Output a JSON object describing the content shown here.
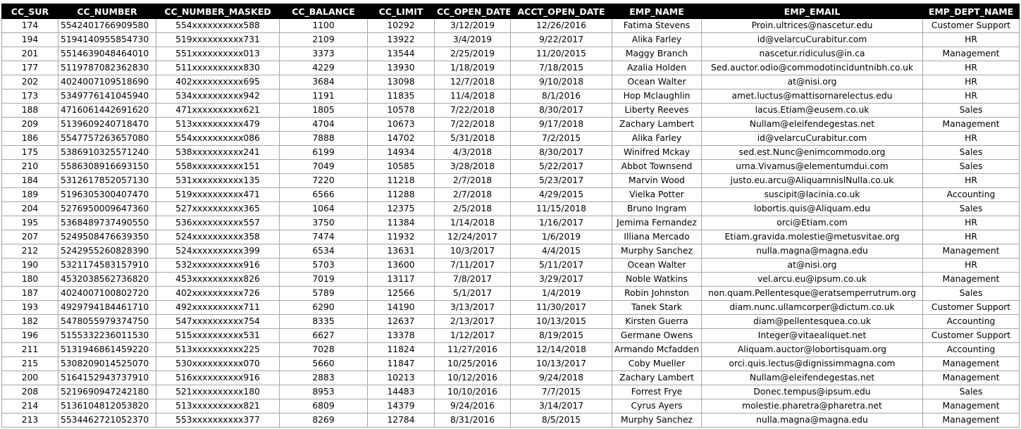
{
  "columns": [
    "CC_SUR",
    "CC_NUMBER",
    "CC_NUMBER_MASKED",
    "CC_BALANCE",
    "CC_LIMIT",
    "CC_OPEN_DATE",
    "ACCT_OPEN_DATE",
    "EMP_NAME",
    "EMP_EMAIL",
    "EMP_DEPT_NAME"
  ],
  "rows": [
    [
      "174",
      "5542401766909580",
      "554xxxxxxxxxx588",
      "1100",
      "10292",
      "3/12/2019",
      "12/26/2016",
      "Fatima Stevens",
      "Proin.ultrices@nascetur.edu",
      "Customer Support"
    ],
    [
      "194",
      "5194140955854730",
      "519xxxxxxxxxx731",
      "2109",
      "13922",
      "3/4/2019",
      "9/22/2017",
      "Alika Farley",
      "id@velarcuCurabitur.com",
      "HR"
    ],
    [
      "201",
      "5514639048464010",
      "551xxxxxxxxxx013",
      "3373",
      "13544",
      "2/25/2019",
      "11/20/2015",
      "Maggy Branch",
      "nascetur.ridiculus@in.ca",
      "Management"
    ],
    [
      "177",
      "5119787082362830",
      "511xxxxxxxxxx830",
      "4229",
      "13930",
      "1/18/2019",
      "7/18/2015",
      "Azalia Holden",
      "Sed.auctor.odio@commodotinciduntnibh.co.uk",
      "HR"
    ],
    [
      "202",
      "4024007109518690",
      "402xxxxxxxxxx695",
      "3684",
      "13098",
      "12/7/2018",
      "9/10/2018",
      "Ocean Walter",
      "at@nisi.org",
      "HR"
    ],
    [
      "173",
      "5349776141045940",
      "534xxxxxxxxxx942",
      "1191",
      "11835",
      "11/4/2018",
      "8/1/2016",
      "Hop Mclaughlin",
      "amet.luctus@mattisornarelectus.edu",
      "HR"
    ],
    [
      "188",
      "4716061442691620",
      "471xxxxxxxxxx621",
      "1805",
      "10578",
      "7/22/2018",
      "8/30/2017",
      "Liberty Reeves",
      "lacus.Etiam@eusem.co.uk",
      "Sales"
    ],
    [
      "209",
      "5139609240718470",
      "513xxxxxxxxxx479",
      "4704",
      "10673",
      "7/22/2018",
      "9/17/2018",
      "Zachary Lambert",
      "Nullam@eleifendegestas.net",
      "Management"
    ],
    [
      "186",
      "5547757263657080",
      "554xxxxxxxxxx086",
      "7888",
      "14702",
      "5/31/2018",
      "7/2/2015",
      "Alika Farley",
      "id@velarcuCurabitur.com",
      "HR"
    ],
    [
      "175",
      "5386910325571240",
      "538xxxxxxxxxx241",
      "6199",
      "14934",
      "4/3/2018",
      "8/30/2017",
      "Winifred Mckay",
      "sed.est.Nunc@enimcommodo.org",
      "Sales"
    ],
    [
      "210",
      "5586308916693150",
      "558xxxxxxxxxx151",
      "7049",
      "10585",
      "3/28/2018",
      "5/22/2017",
      "Abbot Townsend",
      "urna.Vivamus@elementumdui.com",
      "Sales"
    ],
    [
      "184",
      "5312617852057130",
      "531xxxxxxxxxx135",
      "7220",
      "11218",
      "2/7/2018",
      "5/23/2017",
      "Marvin Wood",
      "justo.eu.arcu@AliquamnislNulla.co.uk",
      "HR"
    ],
    [
      "189",
      "5196305300407470",
      "519xxxxxxxxxx471",
      "6566",
      "11288",
      "2/7/2018",
      "4/29/2015",
      "Vielka Potter",
      "suscipit@lacinia.co.uk",
      "Accounting"
    ],
    [
      "204",
      "5276950009647360",
      "527xxxxxxxxxx365",
      "1064",
      "12375",
      "2/5/2018",
      "11/15/2018",
      "Bruno Ingram",
      "lobortis.quis@Aliquam.edu",
      "Sales"
    ],
    [
      "195",
      "5368489737490550",
      "536xxxxxxxxxx557",
      "3750",
      "11384",
      "1/14/2018",
      "1/16/2017",
      "Jemima Fernandez",
      "orci@Etiam.com",
      "HR"
    ],
    [
      "207",
      "5249508476639350",
      "524xxxxxxxxxx358",
      "7474",
      "11932",
      "12/24/2017",
      "1/6/2019",
      "Illiana Mercado",
      "Etiam.gravida.molestie@metusvitae.org",
      "HR"
    ],
    [
      "212",
      "5242955260828390",
      "524xxxxxxxxxx399",
      "6534",
      "13631",
      "10/3/2017",
      "4/4/2015",
      "Murphy Sanchez",
      "nulla.magna@magna.edu",
      "Management"
    ],
    [
      "190",
      "5321174583157910",
      "532xxxxxxxxxx916",
      "5703",
      "13600",
      "7/11/2017",
      "5/11/2017",
      "Ocean Walter",
      "at@nisi.org",
      "HR"
    ],
    [
      "180",
      "4532038562736820",
      "453xxxxxxxxxx826",
      "7019",
      "13117",
      "7/8/2017",
      "3/29/2017",
      "Noble Watkins",
      "vel.arcu.eu@ipsum.co.uk",
      "Management"
    ],
    [
      "187",
      "4024007100802720",
      "402xxxxxxxxxx726",
      "5789",
      "12566",
      "5/1/2017",
      "1/4/2019",
      "Robin Johnston",
      "non.quam.Pellentesque@eratsemperrutrum.org",
      "Sales"
    ],
    [
      "193",
      "4929794184461710",
      "492xxxxxxxxxx711",
      "6290",
      "14190",
      "3/13/2017",
      "11/30/2017",
      "Tanek Stark",
      "diam.nunc.ullamcorper@dictum.co.uk",
      "Customer Support"
    ],
    [
      "182",
      "5478055979374750",
      "547xxxxxxxxxx754",
      "8335",
      "12637",
      "2/13/2017",
      "10/13/2015",
      "Kirsten Guerra",
      "diam@pellentesquea.co.uk",
      "Accounting"
    ],
    [
      "196",
      "5155332236011530",
      "515xxxxxxxxxx531",
      "6627",
      "13378",
      "1/12/2017",
      "8/19/2015",
      "Germane Owens",
      "Integer@vitaealiquet.net",
      "Customer Support"
    ],
    [
      "211",
      "5131946861459220",
      "513xxxxxxxxxx225",
      "7028",
      "11824",
      "11/27/2016",
      "12/14/2018",
      "Armando Mcfadden",
      "Aliquam.auctor@lobortisquam.org",
      "Accounting"
    ],
    [
      "215",
      "5308209014525070",
      "530xxxxxxxxxx070",
      "5660",
      "11847",
      "10/25/2016",
      "10/13/2017",
      "Coby Mueller",
      "orci.quis.lectus@dignissimmagna.com",
      "Management"
    ],
    [
      "200",
      "5164152943737910",
      "516xxxxxxxxxx916",
      "2883",
      "10213",
      "10/12/2016",
      "9/24/2018",
      "Zachary Lambert",
      "Nullam@eleifendegestas.net",
      "Management"
    ],
    [
      "208",
      "5219690947242180",
      "521xxxxxxxxxx180",
      "8953",
      "14483",
      "10/10/2016",
      "7/7/2015",
      "Forrest Frye",
      "Donec.tempus@ipsum.edu",
      "Sales"
    ],
    [
      "214",
      "5136104812053820",
      "513xxxxxxxxxx821",
      "6809",
      "14379",
      "9/24/2016",
      "3/14/2017",
      "Cyrus Ayers",
      "molestie.pharetra@pharetra.net",
      "Management"
    ],
    [
      "213",
      "5534462721052370",
      "553xxxxxxxxxx377",
      "8269",
      "12784",
      "8/31/2016",
      "8/5/2015",
      "Murphy Sanchez",
      "nulla.magna@magna.edu",
      "Management"
    ]
  ]
}
